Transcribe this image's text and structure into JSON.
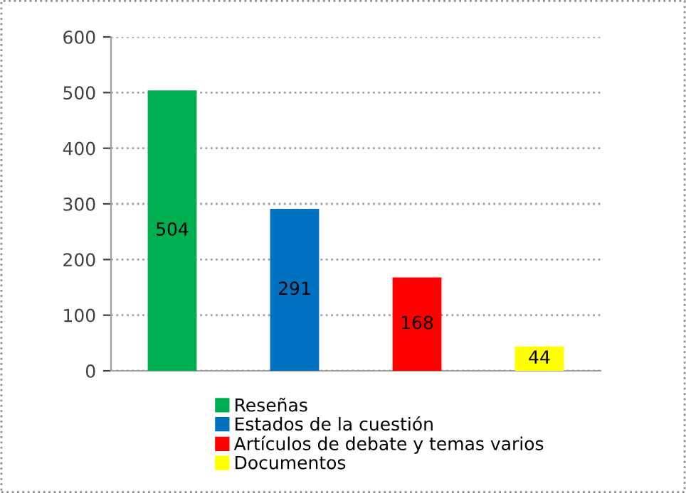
{
  "chart_data": {
    "type": "bar",
    "categories": [
      null,
      null,
      null,
      null
    ],
    "series": [
      {
        "name": "Reseñas",
        "color": "#00b050",
        "values": [
          504,
          null,
          null,
          null
        ]
      },
      {
        "name": "Estados de la cuestión",
        "color": "#0070c0",
        "values": [
          null,
          291,
          null,
          null
        ]
      },
      {
        "name": "Artículos de debate y temas varios",
        "color": "#ff0000",
        "values": [
          null,
          null,
          168,
          null
        ]
      },
      {
        "name": "Documentos",
        "color": "#ffff00",
        "values": [
          null,
          null,
          null,
          44
        ]
      }
    ],
    "ylim": [
      0,
      600
    ],
    "yticks": [
      0,
      100,
      200,
      300,
      400,
      500,
      600
    ],
    "grid": "y",
    "legend": "bottom",
    "data_labels": true
  }
}
